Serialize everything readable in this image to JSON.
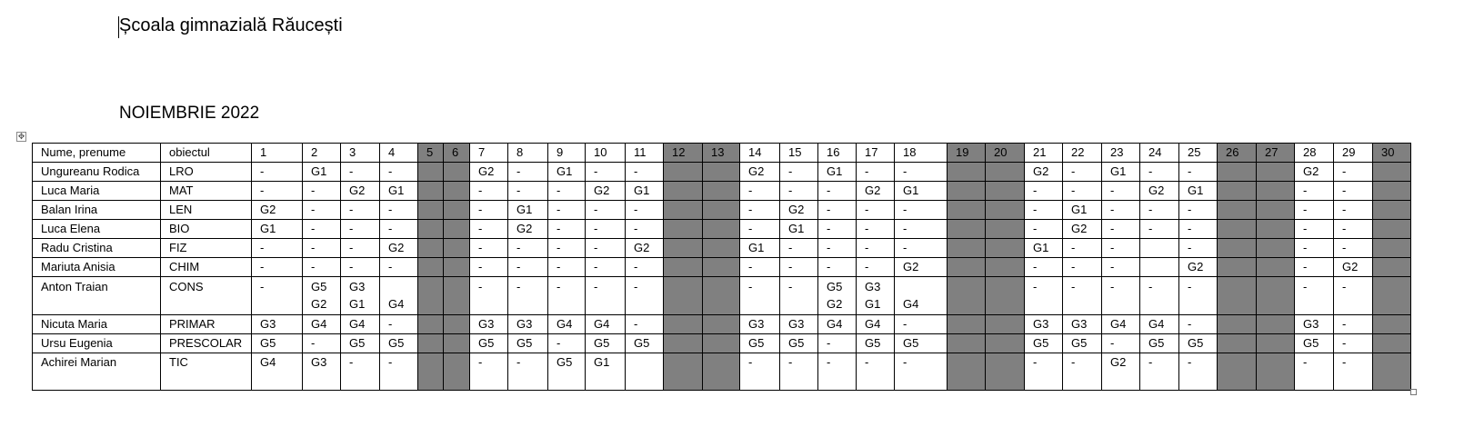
{
  "document": {
    "school_title": "Școala gimnazială Răucești",
    "month_title": "NOIEMBRIE 2022"
  },
  "colors": {
    "weekend_fill": "#808080",
    "border": "#000000"
  },
  "icons": {
    "move_handle": "table-move-handle-icon",
    "resize_handle": "table-resize-handle-icon"
  },
  "table": {
    "headers": [
      "Nume, prenume",
      "obiectul",
      "1",
      "2",
      "3",
      "4",
      "5",
      "6",
      "7",
      "8",
      "9",
      "10",
      "11",
      "12",
      "13",
      "14",
      "15",
      "16",
      "17",
      "18",
      "19",
      "20",
      "21",
      "22",
      "23",
      "24",
      "25",
      "26",
      "27",
      "28",
      "29",
      "30"
    ],
    "weekend_days": [
      5,
      6,
      12,
      13,
      19,
      20,
      26,
      27,
      30
    ],
    "rows": [
      {
        "name": "Ungureanu Rodica",
        "subject": "LRO",
        "days": [
          "-",
          "G1",
          "-",
          "-",
          "",
          "",
          "G2",
          "-",
          "G1",
          "-",
          "-",
          "",
          "",
          "G2",
          "-",
          "G1",
          "-",
          "-",
          "",
          "",
          "G2",
          "-",
          "G1",
          "-",
          "-",
          "",
          "",
          "G2",
          "-",
          ""
        ]
      },
      {
        "name": "Luca Maria",
        "subject": "MAT",
        "days": [
          "-",
          "-",
          "G2",
          "G1",
          "",
          "",
          "-",
          "-",
          "-",
          "G2",
          "G1",
          "",
          "",
          "-",
          "-",
          "-",
          "G2",
          "G1",
          "",
          "",
          "-",
          "-",
          "-",
          "G2",
          "G1",
          "",
          "",
          "-",
          "-",
          ""
        ]
      },
      {
        "name": "Balan Irina",
        "subject": "LEN",
        "days": [
          "G2",
          "-",
          "-",
          "-",
          "",
          "",
          "-",
          "G1",
          "-",
          "-",
          "-",
          "",
          "",
          "-",
          "G2",
          "-",
          "-",
          "-",
          "",
          "",
          "-",
          "G1",
          "-",
          "-",
          "-",
          "",
          "",
          "-",
          "-",
          ""
        ]
      },
      {
        "name": "Luca Elena",
        "subject": "BIO",
        "days": [
          "G1",
          "-",
          "-",
          "-",
          "",
          "",
          "-",
          "G2",
          "-",
          "-",
          "-",
          "",
          "",
          "-",
          "G1",
          "-",
          "-",
          "-",
          "",
          "",
          "-",
          "G2",
          "-",
          "-",
          "-",
          "",
          "",
          "-",
          "-",
          ""
        ]
      },
      {
        "name": "Radu Cristina",
        "subject": "FIZ",
        "days": [
          "-",
          "-",
          "-",
          "G2",
          "",
          "",
          "-",
          "-",
          "-",
          "-",
          "G2",
          "",
          "",
          "G1",
          "-",
          "-",
          "-",
          "-",
          "",
          "",
          "G1",
          "-",
          "-",
          "",
          "-",
          "",
          "",
          "-",
          "-",
          ""
        ]
      },
      {
        "name": "Mariuta Anisia",
        "subject": "CHIM",
        "days": [
          "-",
          "-",
          "-",
          "-",
          "",
          "",
          "-",
          "-",
          "-",
          "-",
          "-",
          "",
          "",
          "-",
          "-",
          "-",
          "-",
          "G2",
          "",
          "",
          "-",
          "-",
          "-",
          "",
          "G2",
          "",
          "",
          "-",
          "G2",
          ""
        ]
      },
      {
        "name": "Anton Traian",
        "subject": "CONS",
        "days": [
          "-",
          "G5\nG2",
          "G3\nG1",
          "\nG4",
          "",
          "",
          "-",
          "-",
          "-",
          "-",
          "-",
          "",
          "",
          "-",
          "-",
          "G5\nG2",
          "G3\nG1",
          "\nG4",
          "",
          "",
          "-",
          "-",
          "-",
          "-",
          "-",
          "",
          "",
          "-",
          "-",
          ""
        ]
      },
      {
        "name": "Nicuta Maria",
        "subject": "PRIMAR",
        "days": [
          "G3",
          "G4",
          "G4",
          "-",
          "",
          "",
          "G3",
          "G3",
          "G4",
          "G4",
          "-",
          "",
          "",
          "G3",
          "G3",
          "G4",
          "G4",
          "-",
          "",
          "",
          "G3",
          "G3",
          "G4",
          "G4",
          "-",
          "",
          "",
          "G3",
          "-",
          ""
        ]
      },
      {
        "name": "Ursu Eugenia",
        "subject": "PRESCOLAR",
        "days": [
          "G5",
          "-",
          "G5",
          "G5",
          "",
          "",
          "G5",
          "G5",
          "-",
          "G5",
          "G5",
          "",
          "",
          "G5",
          "G5",
          "-",
          "G5",
          "G5",
          "",
          "",
          "G5",
          "G5",
          "-",
          "G5",
          "G5",
          "",
          "",
          "G5",
          "-",
          ""
        ]
      },
      {
        "name": "Achirei Marian",
        "subject": "TIC",
        "days": [
          "G4",
          "G3",
          "-",
          "-",
          "",
          "",
          "-",
          "-",
          "G5",
          "G1",
          "",
          "",
          "",
          "-",
          "-",
          "-",
          "-",
          "-",
          "",
          "",
          "-",
          "-",
          "G2",
          "-",
          "-",
          "",
          "",
          "-",
          "-",
          ""
        ]
      }
    ]
  }
}
